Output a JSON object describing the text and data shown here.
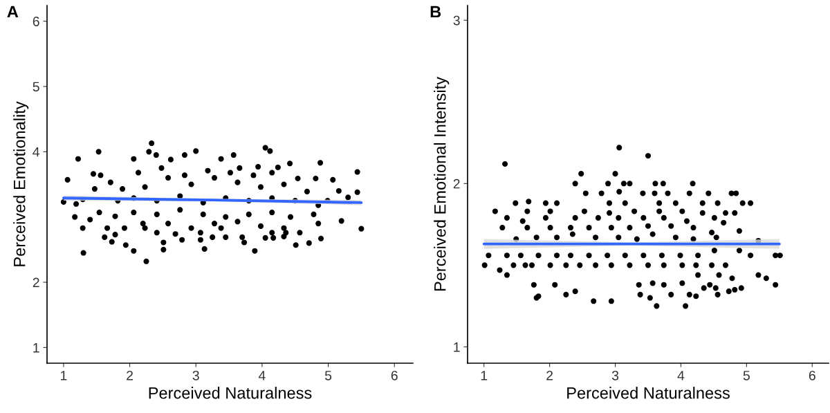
{
  "chart_data": [
    {
      "type": "scatter",
      "title": "A",
      "xlabel": "Perceived Naturalness",
      "ylabel": "Perceived Emotionality",
      "xlim": [
        0.75,
        6.28
      ],
      "ylim": [
        0.76,
        6.24
      ],
      "xticks": [
        1,
        2,
        3,
        4,
        5,
        6
      ],
      "yticks": [
        1,
        2,
        4,
        5,
        6
      ],
      "series": [
        {
          "marker": "circle",
          "color": "#000000",
          "x": [
            1.0,
            1.06,
            1.22,
            1.53,
            1.3,
            1.29,
            1.17,
            1.4,
            1.45,
            1.56,
            2.25,
            2.33,
            2.29,
            2.4,
            2.06,
            1.94,
            2.06,
            2.51,
            2.83,
            3.0,
            3.13,
            2.62,
            3.38,
            3.57,
            4.05,
            4.12,
            3.89,
            4.42,
            4.51,
            4.71,
            4.88,
            5.07,
            5.44,
            5.44,
            5.3,
            5.2,
            5.5,
            4.89,
            4.24,
            3.94,
            3.66,
            3.25,
            3.45,
            3.7,
            1.73,
            1.62,
            1.78,
            1.66,
            1.78,
            1.54,
            1.29,
            1.19,
            1.82,
            2.06,
            2.41,
            2.76,
            3.11,
            3.45,
            3.8,
            4.15,
            4.5,
            4.85,
            4.99,
            5.16,
            1.89,
            2.23,
            2.58,
            2.93,
            3.28,
            3.63,
            3.98,
            4.33,
            4.68,
            4.81,
            2.13,
            2.48,
            2.83,
            3.18,
            3.52,
            3.87,
            4.15,
            4.54,
            1.71,
            1.47,
            2.06,
            2.41,
            2.76,
            3.11,
            3.45,
            3.8,
            4.15,
            4.43,
            4.78,
            2.23,
            2.58,
            2.93,
            3.28,
            3.63,
            3.98,
            4.33,
            4.57,
            4.85,
            2.41,
            2.69,
            3.07,
            3.38,
            4.15,
            4.36,
            3.07,
            2.79,
            2.51,
            2.2,
            1.92,
            3.73,
            4.05,
            4.17,
            4.33
          ],
          "values": [
            3.23,
            3.57,
            3.89,
            4.0,
            2.45,
            2.83,
            3.0,
            2.96,
            3.66,
            3.64,
            2.32,
            4.13,
            4.0,
            3.95,
            3.89,
            2.57,
            2.48,
            2.5,
            3.95,
            4.01,
            2.51,
            3.88,
            3.89,
            3.95,
            4.06,
            4.01,
            2.48,
            3.82,
            2.57,
            2.6,
            3.83,
            3.57,
            3.69,
            3.38,
            3.3,
            2.94,
            2.82,
            2.67,
            3.76,
            3.77,
            3.75,
            2.69,
            2.69,
            2.69,
            2.62,
            2.69,
            2.73,
            2.83,
            3.01,
            3.07,
            3.27,
            3.2,
            3.25,
            3.29,
            3.25,
            3.32,
            3.22,
            3.29,
            3.25,
            3.29,
            3.25,
            3.18,
            3.25,
            3.4,
            3.43,
            3.46,
            3.6,
            3.5,
            3.6,
            3.53,
            3.46,
            3.5,
            3.39,
            3.59,
            3.68,
            3.75,
            3.64,
            3.71,
            3.68,
            3.64,
            3.68,
            3.59,
            3.53,
            3.43,
            3.07,
            3.04,
            3.11,
            3.04,
            3.0,
            3.04,
            3.07,
            3.0,
            3.04,
            2.83,
            2.9,
            2.83,
            2.9,
            2.93,
            2.86,
            2.83,
            2.76,
            2.9,
            2.76,
            2.74,
            2.76,
            2.83,
            2.76,
            2.76,
            2.65,
            2.65,
            2.61,
            2.9,
            2.83,
            2.61,
            2.68,
            2.68,
            2.7
          ]
        },
        {
          "type": "line",
          "color": "#3366ff",
          "x": [
            1.0,
            3.25,
            5.5
          ],
          "values": [
            3.29,
            3.26,
            3.22
          ],
          "lower": [
            3.25,
            3.24,
            3.18
          ],
          "upper": [
            3.33,
            3.28,
            3.26
          ]
        }
      ]
    },
    {
      "type": "scatter",
      "title": "B",
      "xlabel": "Perceived Naturalness",
      "ylabel": "Perceived Emotional Intensity",
      "xlim": [
        0.75,
        6.25
      ],
      "ylim": [
        0.9,
        3.09
      ],
      "xticks": [
        1,
        2,
        3,
        4,
        5,
        6
      ],
      "yticks": [
        1,
        2,
        3
      ],
      "series": [
        {
          "marker": "circle",
          "color": "#000000",
          "x": [
            1.01,
            1.17,
            1.32,
            1.07,
            1.24,
            1.35,
            1.48,
            1.68,
            1.8,
            1.83,
            1.76,
            2.08,
            2.25,
            2.39,
            2.67,
            2.94,
            3.06,
            3.5,
            2.48,
            3.0,
            2.39,
            2.89,
            3.13,
            3.22,
            3.61,
            3.73,
            4.18,
            2.55,
            2.79,
            3.06,
            3.42,
            3.6,
            3.8,
            4.13,
            4.42,
            4.77,
            4.84,
            4.94,
            5.06,
            4.82,
            4.89,
            4.89,
            5.06,
            5.18,
            5.3,
            5.44,
            5.44,
            5.51,
            5.18,
            4.92,
            4.82,
            4.73,
            4.56,
            4.53,
            4.44,
            4.35,
            4.23,
            4.07,
            4.13,
            3.85,
            3.63,
            3.53,
            3.38,
            3.36,
            3.57,
            3.74,
            4.02,
            4.26,
            4.58,
            4.78,
            4.47,
            4.68,
            4.23,
            4.02,
            3.74,
            3.5,
            3.22,
            2.94,
            2.7,
            2.46,
            2.25,
            2.01,
            1.73,
            1.45,
            1.63,
            1.35,
            1.56,
            1.83,
            2.11,
            2.32,
            2.6,
            2.88,
            3.15,
            3.43,
            3.71,
            3.99,
            4.26,
            4.51,
            1.49,
            1.8,
            2.11,
            2.35,
            2.7,
            3.05,
            3.33,
            3.57,
            3.92,
            4.19,
            4.54,
            1.28,
            1.66,
            2.01,
            2.32,
            2.6,
            2.94,
            3.22,
            3.5,
            3.85,
            4.19,
            4.47,
            1.35,
            1.59,
            1.94,
            2.39,
            2.74,
            3.05,
            3.43,
            3.74,
            4.09,
            4.51,
            4.65,
            1.66,
            2.01,
            2.53,
            2.91,
            3.29,
            3.67,
            4.02,
            4.33,
            4.68,
            1.94,
            2.11,
            2.91,
            3.15,
            3.67,
            3.92,
            4.33,
            4.56
          ],
          "values": [
            1.5,
            1.83,
            2.12,
            1.56,
            1.47,
            1.44,
            1.88,
            1.89,
            1.3,
            1.31,
            1.38,
            1.38,
            1.32,
            1.34,
            1.28,
            1.28,
            2.22,
            2.17,
            2.06,
            2.06,
            2.0,
            2.0,
            2.0,
            2.0,
            2.0,
            2.0,
            2.0,
            1.94,
            1.94,
            1.95,
            1.94,
            1.94,
            1.94,
            1.94,
            1.94,
            1.94,
            1.94,
            1.88,
            1.88,
            1.82,
            1.71,
            1.59,
            1.56,
            1.44,
            1.42,
            1.38,
            1.56,
            1.56,
            1.65,
            1.36,
            1.35,
            1.34,
            1.32,
            1.36,
            1.38,
            1.36,
            1.31,
            1.25,
            1.32,
            1.32,
            1.25,
            1.3,
            1.32,
            1.38,
            1.39,
            1.38,
            1.39,
            1.44,
            1.44,
            1.42,
            1.5,
            1.5,
            1.5,
            1.5,
            1.5,
            1.5,
            1.5,
            1.5,
            1.5,
            1.5,
            1.5,
            1.5,
            1.5,
            1.5,
            1.5,
            1.56,
            1.56,
            1.56,
            1.56,
            1.56,
            1.56,
            1.56,
            1.56,
            1.56,
            1.56,
            1.56,
            1.56,
            1.59,
            1.66,
            1.67,
            1.67,
            1.69,
            1.67,
            1.67,
            1.66,
            1.69,
            1.67,
            1.66,
            1.67,
            1.73,
            1.73,
            1.73,
            1.73,
            1.73,
            1.73,
            1.73,
            1.74,
            1.74,
            1.73,
            1.7,
            1.79,
            1.77,
            1.79,
            1.79,
            1.79,
            1.79,
            1.79,
            1.79,
            1.77,
            1.79,
            1.76,
            1.83,
            1.83,
            1.83,
            1.82,
            1.83,
            1.83,
            1.83,
            1.82,
            1.82,
            1.88,
            1.88,
            1.88,
            1.88,
            1.88,
            1.88,
            1.88,
            1.88
          ]
        },
        {
          "type": "line",
          "color": "#3366ff",
          "x": [
            1.0,
            3.25,
            5.5
          ],
          "values": [
            1.63,
            1.63,
            1.63
          ],
          "lower": [
            1.6,
            1.62,
            1.6
          ],
          "upper": [
            1.66,
            1.64,
            1.66
          ]
        }
      ]
    }
  ]
}
